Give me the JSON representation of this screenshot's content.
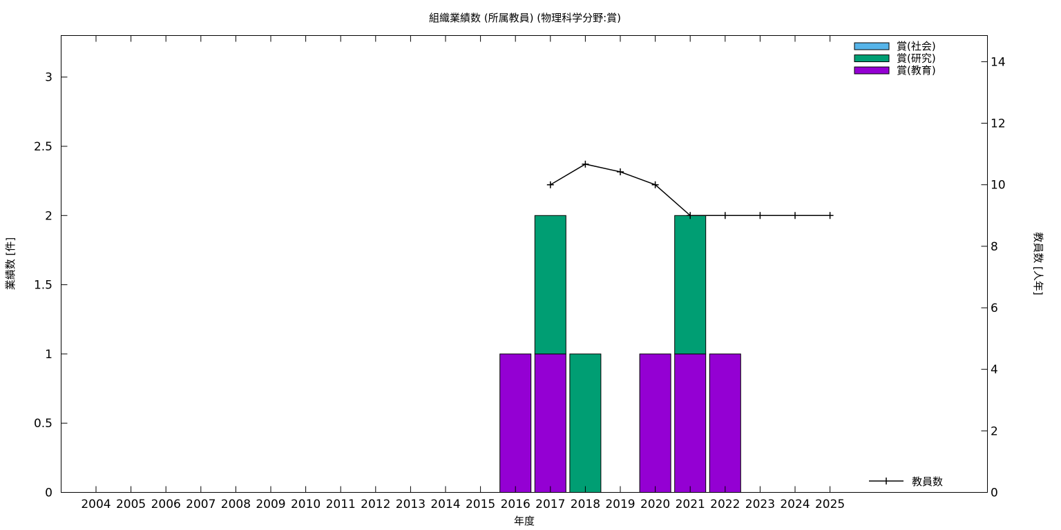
{
  "chart_data": {
    "type": "bar",
    "title": "組織業績数 (所属教員) (物理科学分野:賞)",
    "xlabel": "年度",
    "ylabel": "業績数 [件]",
    "y2label": "教員数 [人年]",
    "categories": [
      "2004",
      "2005",
      "2006",
      "2007",
      "2008",
      "2009",
      "2010",
      "2011",
      "2012",
      "2013",
      "2014",
      "2015",
      "2016",
      "2017",
      "2018",
      "2019",
      "2020",
      "2021",
      "2022",
      "2023",
      "2024",
      "2025"
    ],
    "ylim": [
      0,
      3.3
    ],
    "yticks": [
      0,
      0.5,
      1,
      1.5,
      2,
      2.5,
      3
    ],
    "y2lim": [
      0,
      14.85
    ],
    "y2ticks": [
      0,
      2,
      4,
      6,
      8,
      10,
      12,
      14
    ],
    "stacked": true,
    "series": [
      {
        "name": "賞(教育)",
        "color": "#9400d3",
        "values": [
          0,
          0,
          0,
          0,
          0,
          0,
          0,
          0,
          0,
          0,
          0,
          0,
          1,
          1,
          0,
          0,
          1,
          1,
          1,
          0,
          0,
          0
        ]
      },
      {
        "name": "賞(研究)",
        "color": "#009e73",
        "values": [
          0,
          0,
          0,
          0,
          0,
          0,
          0,
          0,
          0,
          0,
          0,
          0,
          0,
          1,
          1,
          0,
          0,
          1,
          0,
          0,
          0,
          0
        ]
      },
      {
        "name": "賞(社会)",
        "color": "#56b4e9",
        "values": [
          0,
          0,
          0,
          0,
          0,
          0,
          0,
          0,
          0,
          0,
          0,
          0,
          0,
          0,
          0,
          0,
          0,
          0,
          0,
          0,
          0,
          0
        ]
      }
    ],
    "legend_order": [
      "賞(社会)",
      "賞(研究)",
      "賞(教育)"
    ],
    "legend_position": "top-right",
    "line_series": {
      "name": "教員数",
      "axis": "y2",
      "color": "#000000",
      "x": [
        "2017",
        "2018",
        "2019",
        "2020",
        "2021",
        "2022",
        "2023",
        "2024",
        "2025"
      ],
      "values": [
        10,
        10.67,
        10.42,
        10,
        9,
        9,
        9,
        9,
        9
      ]
    },
    "grid": false
  }
}
